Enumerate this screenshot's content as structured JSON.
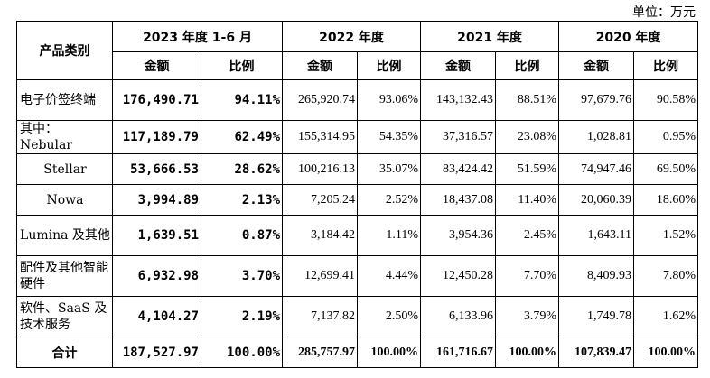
{
  "unit_label": "单位：万元",
  "header": {
    "category": "产品类别",
    "periods": [
      "2023 年度 1-6 月",
      "2022 年度",
      "2021 年度",
      "2020 年度"
    ],
    "amount": "金额",
    "ratio": "比例"
  },
  "rows": [
    {
      "label": "电子价签终端",
      "values": [
        "176,490.71",
        "94.11%",
        "265,920.74",
        "93.06%",
        "143,132.43",
        "88.51%",
        "97,679.76",
        "90.58%"
      ]
    },
    {
      "label": "其中：Nebular",
      "values": [
        "117,189.79",
        "62.49%",
        "155,314.95",
        "54.35%",
        "37,316.57",
        "23.08%",
        "1,028.81",
        "0.95%"
      ]
    },
    {
      "label": "Stellar",
      "values": [
        "53,666.53",
        "28.62%",
        "100,216.13",
        "35.07%",
        "83,424.42",
        "51.59%",
        "74,947.46",
        "69.50%"
      ]
    },
    {
      "label": "Nowa",
      "values": [
        "3,994.89",
        "2.13%",
        "7,205.24",
        "2.52%",
        "18,437.08",
        "11.40%",
        "20,060.39",
        "18.60%"
      ]
    },
    {
      "label": "Lumina 及其他",
      "values": [
        "1,639.51",
        "0.87%",
        "3,184.42",
        "1.11%",
        "3,954.36",
        "2.45%",
        "1,643.11",
        "1.52%"
      ]
    },
    {
      "label": "配件及其他智能硬件",
      "values": [
        "6,932.98",
        "3.70%",
        "12,699.41",
        "4.44%",
        "12,450.28",
        "7.70%",
        "8,409.93",
        "7.80%"
      ]
    },
    {
      "label": "软件、SaaS 及技术服务",
      "values": [
        "4,104.27",
        "2.19%",
        "7,137.82",
        "2.50%",
        "6,133.96",
        "3.79%",
        "1,749.78",
        "1.62%"
      ]
    }
  ],
  "total": {
    "label": "合计",
    "values": [
      "187,527.97",
      "100.00%",
      "285,757.97",
      "100.00%",
      "161,716.67",
      "100.00%",
      "107,839.47",
      "100.00%"
    ]
  }
}
